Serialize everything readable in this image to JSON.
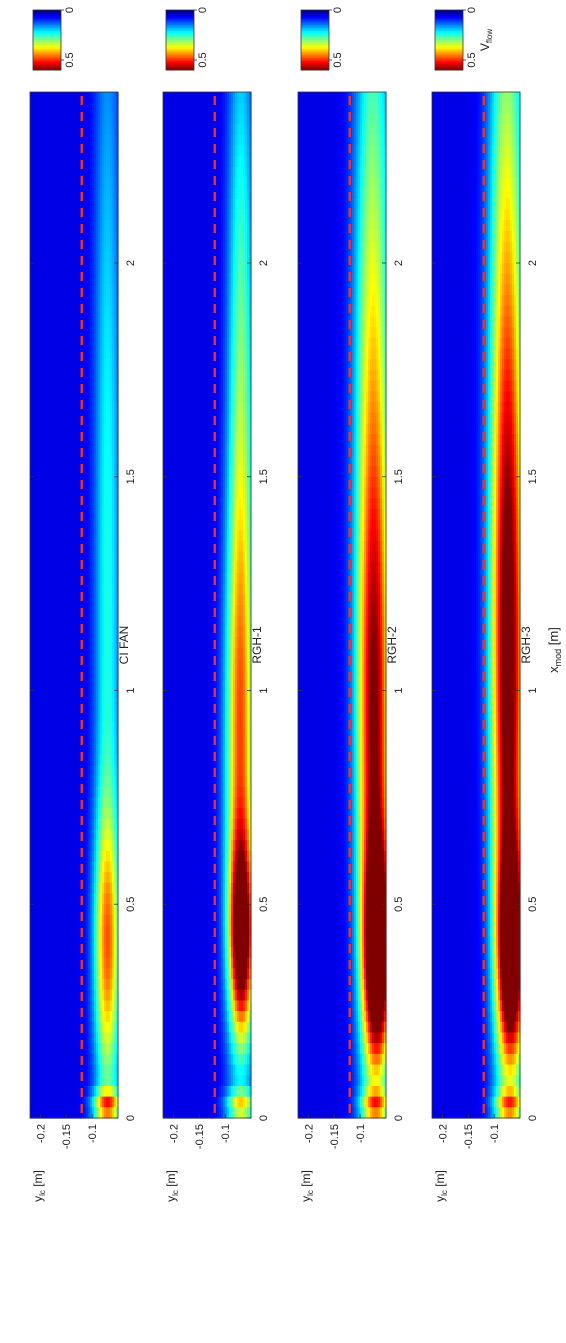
{
  "chart_data": {
    "type": "heatmap",
    "orientation": "rotated-90-ccw",
    "colormap": "jet",
    "colorbar": {
      "label": "V",
      "label_sub": "flow",
      "range": [
        0,
        0.6
      ],
      "ticks": [
        0,
        0.5
      ]
    },
    "xlabel": "x",
    "xlabel_sub": "mod",
    "xlabel_unit": "[m]",
    "xlim": [
      0,
      2.4
    ],
    "x_ticks": [
      0,
      0.5,
      1,
      1.5,
      2
    ],
    "ylabel": "y",
    "ylabel_sub": "lc",
    "ylabel_unit": "[m]",
    "ylim": [
      -0.22,
      -0.05
    ],
    "y_ticks": [
      -0.1,
      -0.15,
      -0.2
    ],
    "y_tick_labels": [
      "-0.1",
      "-0.15",
      "-0.2"
    ],
    "x_tick_labels": [
      "0",
      "0.5",
      "1",
      "1.5",
      "2"
    ],
    "reference_line": {
      "y": -0.12,
      "style": "dashed",
      "color": "#e8342c"
    },
    "panels": [
      {
        "title": "CI FAN",
        "field": [
          {
            "x": 0.03,
            "y": -0.07,
            "sx": 0.025,
            "sy": 0.02,
            "v": 0.3
          },
          {
            "x": 0.4,
            "y": -0.07,
            "sx": 0.22,
            "sy": 0.018,
            "v": 0.28
          },
          {
            "x": 1.2,
            "y": -0.07,
            "sx": 1.1,
            "sy": 0.018,
            "v": 0.18
          }
        ]
      },
      {
        "title": "RGH-1",
        "field": [
          {
            "x": 0.03,
            "y": -0.07,
            "sx": 0.025,
            "sy": 0.02,
            "v": 0.25
          },
          {
            "x": 0.42,
            "y": -0.068,
            "sx": 0.15,
            "sy": 0.016,
            "v": 0.48
          },
          {
            "x": 0.8,
            "y": -0.072,
            "sx": 0.45,
            "sy": 0.02,
            "v": 0.32
          },
          {
            "x": 1.7,
            "y": -0.07,
            "sx": 0.7,
            "sy": 0.018,
            "v": 0.22
          }
        ]
      },
      {
        "title": "RGH-2",
        "field": [
          {
            "x": 0.03,
            "y": -0.07,
            "sx": 0.025,
            "sy": 0.02,
            "v": 0.25
          },
          {
            "x": 0.38,
            "y": -0.066,
            "sx": 0.17,
            "sy": 0.018,
            "v": 0.56
          },
          {
            "x": 0.8,
            "y": -0.072,
            "sx": 0.5,
            "sy": 0.022,
            "v": 0.38
          },
          {
            "x": 1.7,
            "y": -0.075,
            "sx": 0.8,
            "sy": 0.025,
            "v": 0.3
          }
        ]
      },
      {
        "title": "RGH-3",
        "field": [
          {
            "x": 0.03,
            "y": -0.07,
            "sx": 0.025,
            "sy": 0.02,
            "v": 0.25
          },
          {
            "x": 0.38,
            "y": -0.066,
            "sx": 0.17,
            "sy": 0.018,
            "v": 0.52
          },
          {
            "x": 0.9,
            "y": -0.072,
            "sx": 0.55,
            "sy": 0.022,
            "v": 0.42
          },
          {
            "x": 1.8,
            "y": -0.075,
            "sx": 0.8,
            "sy": 0.025,
            "v": 0.32
          }
        ]
      }
    ]
  }
}
